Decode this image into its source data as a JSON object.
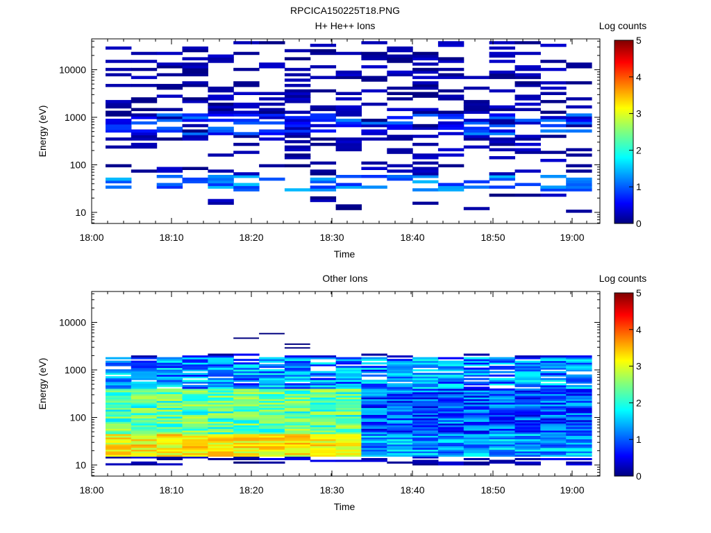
{
  "page_title": "RPCICA150225T18.PNG",
  "chart_data": [
    {
      "type": "heatmap",
      "title": "H+ He++ Ions",
      "xlabel": "Time",
      "ylabel": "Energy (eV)",
      "colorbar_label": "Log counts",
      "x_ticks": [
        "18:00",
        "18:10",
        "18:20",
        "18:30",
        "18:40",
        "18:50",
        "19:00"
      ],
      "x_range": [
        "18:00",
        "19:03"
      ],
      "y_scale": "log",
      "y_ticks": [
        "10",
        "100",
        "1000",
        "10000"
      ],
      "y_range": [
        6,
        45000
      ],
      "color_range": [
        0,
        5
      ],
      "color_ticks": [
        "0",
        "1",
        "2",
        "3",
        "4",
        "5"
      ],
      "time_bins": 19,
      "energy_range_with_counts": [
        10,
        40000
      ],
      "typical_log_counts": [
        0,
        1.2
      ]
    },
    {
      "type": "heatmap",
      "title": "Other Ions",
      "xlabel": "Time",
      "ylabel": "Energy (eV)",
      "colorbar_label": "Log counts",
      "x_ticks": [
        "18:00",
        "18:10",
        "18:20",
        "18:30",
        "18:40",
        "18:50",
        "19:00"
      ],
      "x_range": [
        "18:00",
        "19:03"
      ],
      "y_scale": "log",
      "y_ticks": [
        "10",
        "100",
        "1000",
        "10000"
      ],
      "y_range": [
        6,
        45000
      ],
      "color_range": [
        0,
        5
      ],
      "color_ticks": [
        "0",
        "1",
        "2",
        "3",
        "4",
        "5"
      ],
      "time_bins": 19,
      "energy_range_with_counts": [
        10,
        6000
      ],
      "peak_energy_eV": 30,
      "peak_log_counts": 3.5
    }
  ]
}
